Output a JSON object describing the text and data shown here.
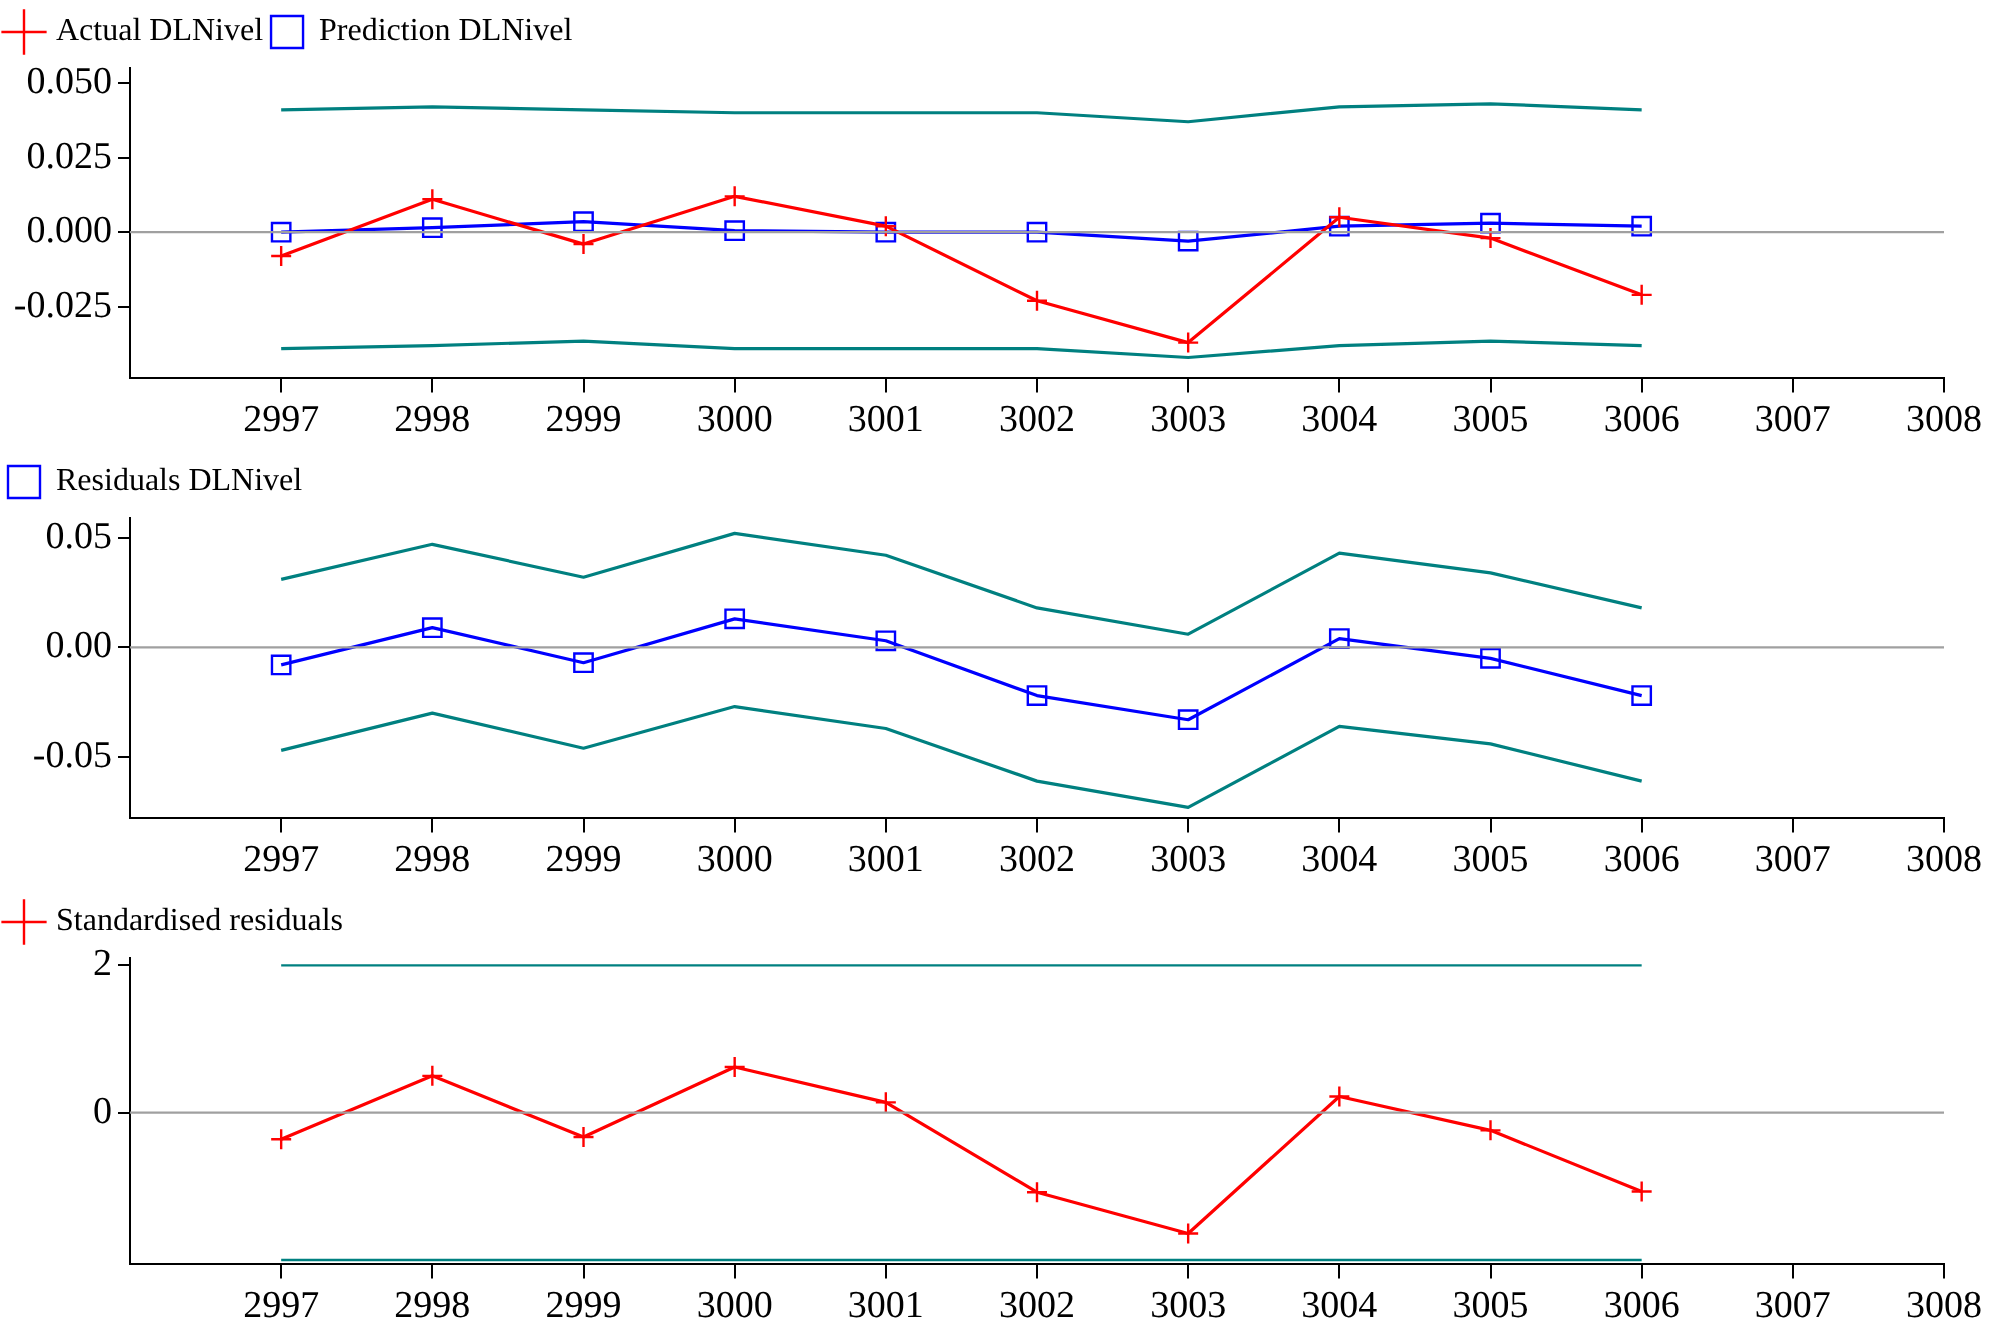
{
  "chart_data": [
    {
      "type": "line",
      "legend": "top left",
      "grid": false,
      "x": [
        2997,
        2998,
        2999,
        3000,
        3001,
        3002,
        3003,
        3004,
        3005,
        3006
      ],
      "xlim": [
        2996,
        3008
      ],
      "xticks": [
        2997,
        2998,
        2999,
        3000,
        3001,
        3002,
        3003,
        3004,
        3005,
        3006,
        3007,
        3008
      ],
      "ylim": [
        -0.049,
        0.055
      ],
      "yticks": [
        {
          "value": -0.025,
          "label": "-0.025"
        },
        {
          "value": 0,
          "label": "0.000"
        },
        {
          "value": 0.025,
          "label": "0.025"
        },
        {
          "value": 0.05,
          "label": "0.050"
        }
      ],
      "ref_lines": [
        {
          "axis": "y",
          "value": 0,
          "color": "#a0a0a0"
        }
      ],
      "series": [
        {
          "name": "Actual DLNivel",
          "color": "#ff0000",
          "marker": "cross",
          "values": [
            -0.008,
            0.011,
            -0.004,
            0.012,
            0.002,
            -0.023,
            -0.037,
            0.005,
            -0.002,
            -0.021
          ]
        },
        {
          "name": "Prediction DLNivel",
          "color": "#0000ff",
          "marker": "square",
          "values": [
            0,
            0.0015,
            0.0035,
            0.0005,
            0,
            0,
            -0.003,
            0.002,
            0.003,
            0.002
          ]
        },
        {
          "color": "#008080",
          "marker": "none",
          "values": [
            0.041,
            0.042,
            0.041,
            0.04,
            0.04,
            0.04,
            0.037,
            0.042,
            0.043,
            0.041
          ]
        },
        {
          "color": "#008080",
          "marker": "none",
          "values": [
            -0.039,
            -0.038,
            -0.0365,
            -0.039,
            -0.039,
            -0.039,
            -0.042,
            -0.038,
            -0.0365,
            -0.038
          ]
        }
      ]
    },
    {
      "type": "line",
      "legend": "top left",
      "grid": false,
      "x": [
        2997,
        2998,
        2999,
        3000,
        3001,
        3002,
        3003,
        3004,
        3005,
        3006
      ],
      "xlim": [
        2996,
        3008
      ],
      "xticks": [
        2997,
        2998,
        2999,
        3000,
        3001,
        3002,
        3003,
        3004,
        3005,
        3006,
        3007,
        3008
      ],
      "ylim": [
        -0.078,
        0.059
      ],
      "yticks": [
        {
          "value": -0.05,
          "label": "-0.05"
        },
        {
          "value": 0,
          "label": "0.00"
        },
        {
          "value": 0.05,
          "label": "0.05"
        }
      ],
      "ref_lines": [
        {
          "axis": "y",
          "value": 0,
          "color": "#a0a0a0"
        }
      ],
      "series": [
        {
          "name": "Residuals DLNivel",
          "color": "#0000ff",
          "marker": "square",
          "values": [
            -0.008,
            0.009,
            -0.007,
            0.013,
            0.003,
            -0.022,
            -0.033,
            0.004,
            -0.005,
            -0.022
          ]
        },
        {
          "color": "#008080",
          "marker": "none",
          "values": [
            0.031,
            0.047,
            0.032,
            0.052,
            0.042,
            0.018,
            0.006,
            0.043,
            0.034,
            0.018
          ]
        },
        {
          "color": "#008080",
          "marker": "none",
          "values": [
            -0.047,
            -0.03,
            -0.046,
            -0.027,
            -0.037,
            -0.061,
            -0.073,
            -0.036,
            -0.044,
            -0.061
          ]
        }
      ]
    },
    {
      "type": "line",
      "legend": "top left",
      "grid": false,
      "x": [
        2997,
        2998,
        2999,
        3000,
        3001,
        3002,
        3003,
        3004,
        3005,
        3006
      ],
      "xlim": [
        2996,
        3008
      ],
      "xticks": [
        2997,
        2998,
        2999,
        3000,
        3001,
        3002,
        3003,
        3004,
        3005,
        3006,
        3007,
        3008
      ],
      "ylim": [
        -2.06,
        2.1
      ],
      "yticks": [
        0,
        2
      ],
      "ref_lines": [
        {
          "axis": "y",
          "value": 0,
          "color": "#a0a0a0"
        },
        {
          "axis": "y",
          "value": 2,
          "color": "#008080"
        },
        {
          "axis": "y",
          "value": -2,
          "color": "#008080"
        }
      ],
      "series": [
        {
          "name": "Standardised residuals",
          "color": "#ff0000",
          "marker": "cross",
          "values": [
            -0.36,
            0.5,
            -0.33,
            0.62,
            0.14,
            -1.08,
            -1.64,
            0.22,
            -0.24,
            -1.07
          ]
        }
      ]
    }
  ]
}
